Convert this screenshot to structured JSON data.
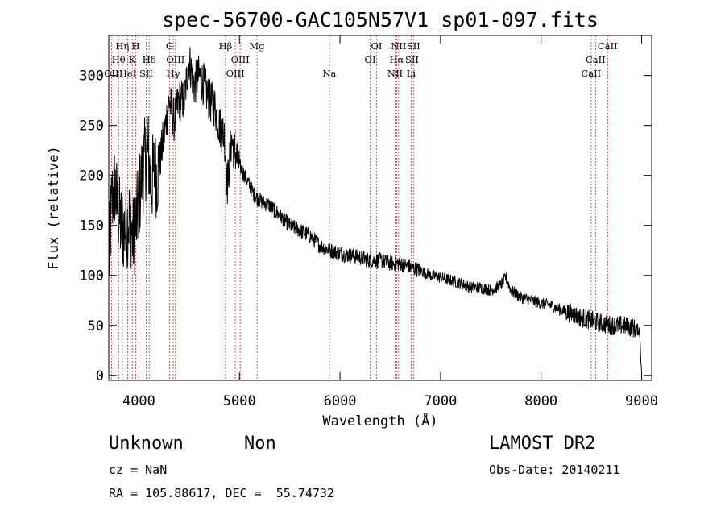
{
  "chart_data": {
    "type": "line",
    "title": "spec-56700-GAC105N57V1_sp01-097.fits",
    "xlabel": "Wavelength (Å)",
    "ylabel": "Flux (relative)",
    "xlim": [
      3700,
      9100
    ],
    "ylim": [
      -5,
      340
    ],
    "xticks": [
      4000,
      5000,
      6000,
      7000,
      8000,
      9000
    ],
    "yticks": [
      0,
      50,
      100,
      150,
      200,
      250,
      300
    ],
    "grid": false,
    "series": [
      {
        "x": [
          3700,
          3730,
          3760,
          3790,
          3820,
          3850,
          3880,
          3910,
          3940,
          3970,
          4000,
          4030,
          4060,
          4090,
          4120,
          4150,
          4180,
          4210,
          4250,
          4300,
          4350,
          4400,
          4450,
          4500,
          4550,
          4600,
          4650,
          4700,
          4750,
          4800,
          4850,
          4880,
          4920,
          5000,
          5050,
          5100,
          5150,
          5200,
          5300,
          5400,
          5500,
          5600,
          5700,
          5800,
          5900,
          6000,
          6100,
          6200,
          6300,
          6400,
          6500,
          6600,
          6700,
          6800,
          6900,
          7000,
          7100,
          7200,
          7300,
          7400,
          7500,
          7600,
          7650,
          7700,
          7800,
          7900,
          8000,
          8100,
          8200,
          8300,
          8400,
          8500,
          8600,
          8700,
          8800,
          8900,
          8980,
          9000
        ],
        "y": [
          110,
          175,
          190,
          165,
          150,
          145,
          150,
          160,
          135,
          150,
          175,
          200,
          215,
          225,
          190,
          205,
          200,
          215,
          240,
          275,
          255,
          275,
          275,
          315,
          290,
          300,
          290,
          275,
          270,
          250,
          240,
          190,
          235,
          210,
          200,
          190,
          180,
          175,
          170,
          160,
          150,
          145,
          140,
          130,
          125,
          122,
          120,
          118,
          115,
          115,
          112,
          112,
          108,
          105,
          100,
          98,
          95,
          92,
          88,
          88,
          85,
          90,
          98,
          85,
          78,
          75,
          72,
          70,
          65,
          62,
          58,
          55,
          52,
          50,
          50,
          48,
          45,
          2
        ]
      }
    ],
    "line_labels": [
      {
        "text": "OII",
        "wavelength": 3727,
        "row": 3
      },
      {
        "text": "Hθ",
        "wavelength": 3798,
        "row": 2
      },
      {
        "text": "Hη",
        "wavelength": 3835,
        "row": 1
      },
      {
        "text": "HeI",
        "wavelength": 3889,
        "row": 3
      },
      {
        "text": "K",
        "wavelength": 3934,
        "row": 2
      },
      {
        "text": "H",
        "wavelength": 3969,
        "row": 1
      },
      {
        "text": "SII",
        "wavelength": 4072,
        "row": 3
      },
      {
        "text": "Hδ",
        "wavelength": 4102,
        "row": 2
      },
      {
        "text": "G",
        "wavelength": 4305,
        "row": 1
      },
      {
        "text": "Hγ",
        "wavelength": 4341,
        "row": 3
      },
      {
        "text": "OIII",
        "wavelength": 4363,
        "row": 2
      },
      {
        "text": "Hβ",
        "wavelength": 4861,
        "row": 1
      },
      {
        "text": "OIII",
        "wavelength": 4959,
        "row": 3
      },
      {
        "text": "OIII",
        "wavelength": 5007,
        "row": 2
      },
      {
        "text": "Mg",
        "wavelength": 5175,
        "row": 1
      },
      {
        "text": "Na",
        "wavelength": 5894,
        "row": 3
      },
      {
        "text": "OI",
        "wavelength": 6300,
        "row": 2
      },
      {
        "text": "OI",
        "wavelength": 6364,
        "row": 1
      },
      {
        "text": "NII",
        "wavelength": 6548,
        "row": 3
      },
      {
        "text": "Hα",
        "wavelength": 6563,
        "row": 2
      },
      {
        "text": "NII",
        "wavelength": 6583,
        "row": 1
      },
      {
        "text": "Li",
        "wavelength": 6708,
        "row": 3
      },
      {
        "text": "SII",
        "wavelength": 6716,
        "row": 2
      },
      {
        "text": "SII",
        "wavelength": 6731,
        "row": 1
      },
      {
        "text": "CaII",
        "wavelength": 8498,
        "row": 3
      },
      {
        "text": "CaII",
        "wavelength": 8542,
        "row": 2
      },
      {
        "text": "CaII",
        "wavelength": 8662,
        "row": 1
      }
    ]
  },
  "info": {
    "class_label": "Unknown",
    "subclass_label": "Non",
    "survey": "LAMOST DR2",
    "cz": "cz = NaN",
    "obs_date": "Obs-Date: 20140211",
    "coords": "RA = 105.88617, DEC =  55.74732"
  }
}
